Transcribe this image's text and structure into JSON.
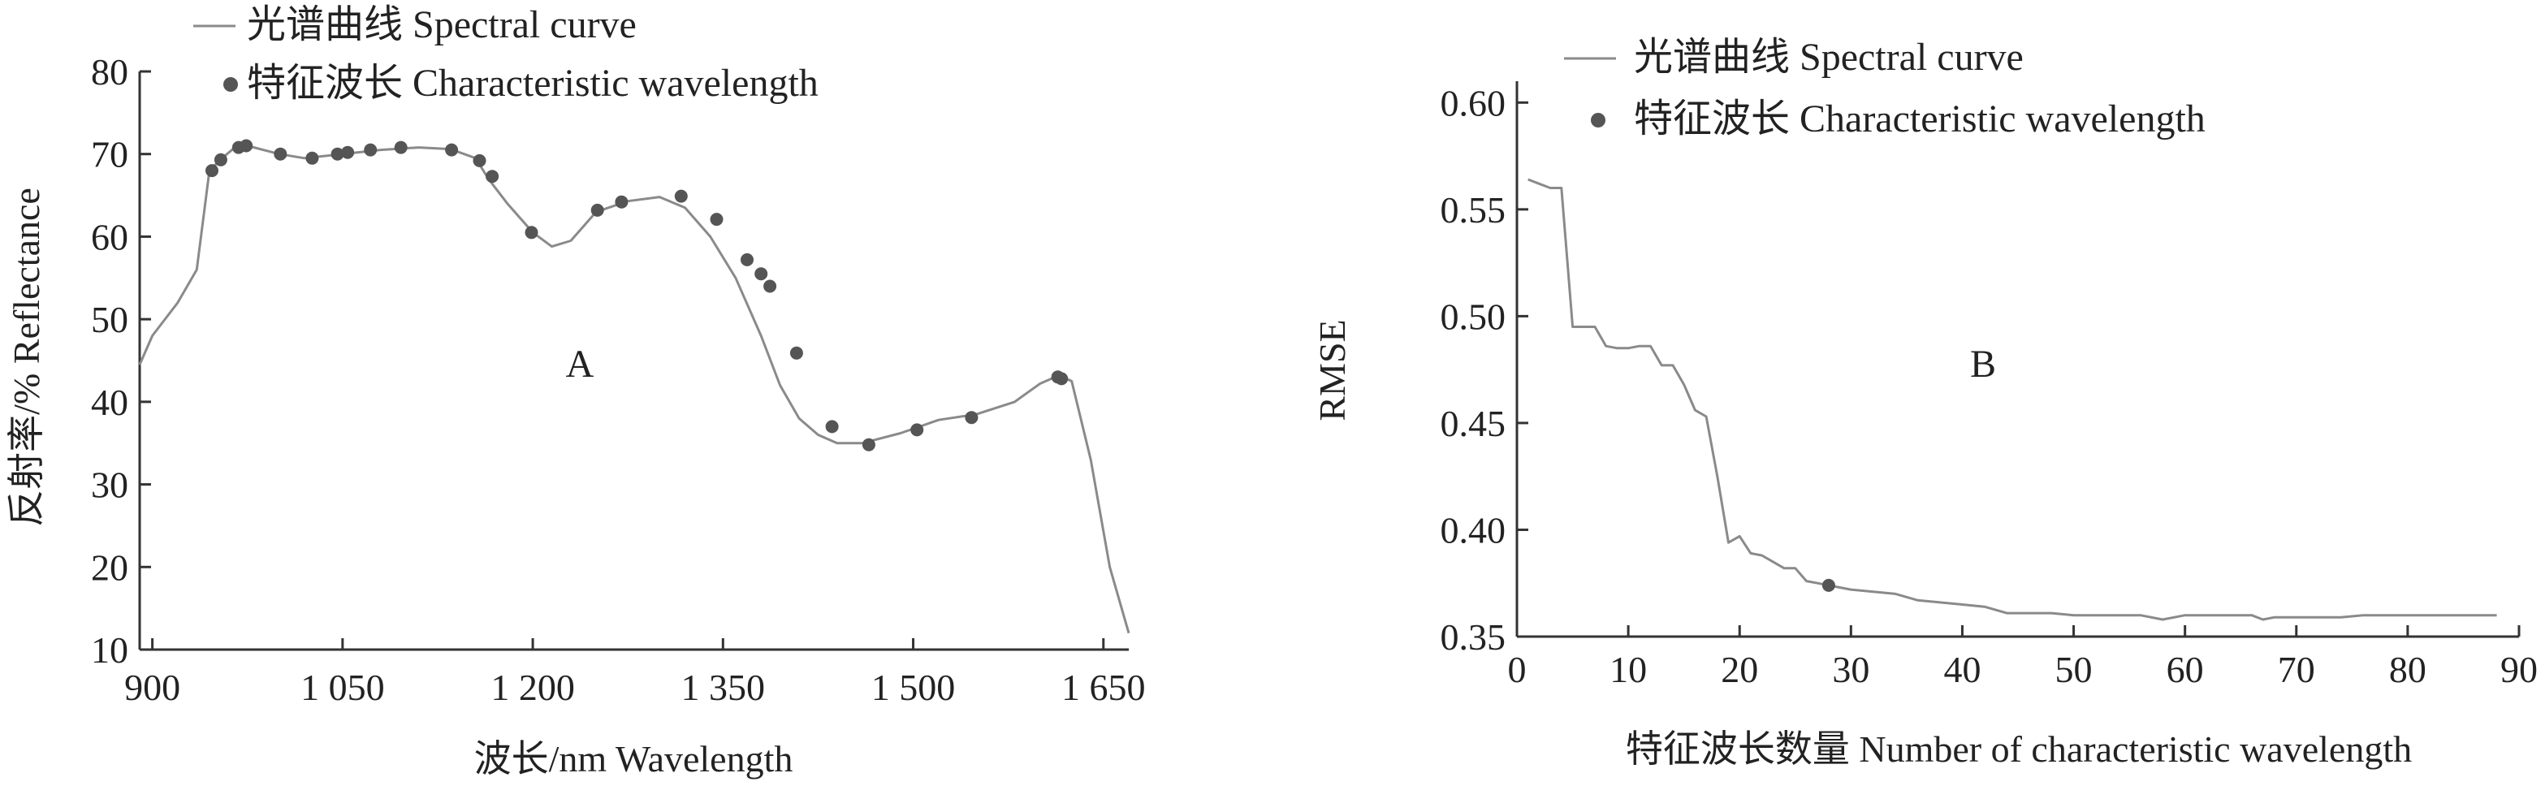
{
  "chart_data": [
    {
      "type": "line",
      "panel_label": "A",
      "xlabel": "波长/nm Wavelength",
      "ylabel": "反射率/% Reflectance",
      "xlim": [
        890,
        1670
      ],
      "ylim": [
        10,
        80
      ],
      "xticks": [
        900,
        1050,
        1200,
        1350,
        1500,
        1650
      ],
      "xtick_labels": [
        "900",
        "1 050",
        "1 200",
        "1 350",
        "1 500",
        "1 650"
      ],
      "yticks": [
        10,
        20,
        30,
        40,
        50,
        60,
        70,
        80
      ],
      "ytick_labels": [
        "10",
        "20",
        "30",
        "40",
        "50",
        "60",
        "70",
        "80"
      ],
      "legend": [
        {
          "label": "光谱曲线  Spectral curve",
          "marker": "line"
        },
        {
          "label": "特征波长  Characteristic wavelength",
          "marker": "dot"
        }
      ],
      "legend_position": "top",
      "series": [
        {
          "name": "光谱曲线  Spectral curve",
          "x": [
            890,
            900,
            920,
            935,
            945,
            955,
            965,
            975,
            1000,
            1020,
            1050,
            1080,
            1110,
            1135,
            1155,
            1165,
            1180,
            1200,
            1215,
            1230,
            1250,
            1275,
            1300,
            1320,
            1340,
            1360,
            1380,
            1395,
            1410,
            1425,
            1440,
            1460,
            1490,
            1520,
            1550,
            1580,
            1600,
            1615,
            1625,
            1640,
            1655,
            1670
          ],
          "y": [
            44.5,
            48,
            52,
            56,
            68,
            69.5,
            70.8,
            71,
            70,
            69.5,
            70,
            70.5,
            70.8,
            70.6,
            69.5,
            67,
            64,
            60.5,
            58.8,
            59.5,
            63,
            64.3,
            64.8,
            63.5,
            60,
            55,
            48,
            42,
            38,
            36,
            35,
            35,
            36.2,
            37.8,
            38.5,
            40,
            42.2,
            43.2,
            42.5,
            33,
            20,
            12
          ]
        },
        {
          "name": "特征波长  Characteristic wavelength",
          "x": [
            947,
            954,
            968,
            974,
            1001,
            1026,
            1046,
            1054,
            1072,
            1096,
            1136,
            1158,
            1168,
            1199,
            1251,
            1270,
            1317,
            1345,
            1369,
            1380,
            1387,
            1408,
            1436,
            1465,
            1503,
            1546,
            1614,
            1617
          ],
          "y": [
            68,
            69.3,
            70.8,
            71,
            70,
            69.5,
            70,
            70.2,
            70.5,
            70.8,
            70.5,
            69.2,
            67.3,
            60.5,
            63.2,
            64.2,
            64.9,
            62.1,
            57.2,
            55.5,
            54,
            45.9,
            37,
            34.8,
            36.6,
            38.1,
            43,
            42.8
          ]
        }
      ]
    },
    {
      "type": "line",
      "panel_label": "B",
      "xlabel": "特征波长数量 Number of characteristic wavelength",
      "ylabel": "RMSE",
      "xlim": [
        0,
        90
      ],
      "ylim": [
        0.35,
        0.61
      ],
      "xticks": [
        0,
        10,
        20,
        30,
        40,
        50,
        60,
        70,
        80,
        90
      ],
      "xtick_labels": [
        "0",
        "10",
        "20",
        "30",
        "40",
        "50",
        "60",
        "70",
        "80",
        "90"
      ],
      "yticks": [
        0.35,
        0.4,
        0.45,
        0.5,
        0.55,
        0.6
      ],
      "ytick_labels": [
        "0.35",
        "0.40",
        "0.45",
        "0.50",
        "0.55",
        "0.60"
      ],
      "legend": [
        {
          "label": "光谱曲线  Spectral curve",
          "marker": "line"
        },
        {
          "label": "特征波长  Characteristic wavelength",
          "marker": "dot"
        }
      ],
      "legend_position": "top-right",
      "series": [
        {
          "name": "光谱曲线  Spectral curve",
          "x": [
            1,
            2,
            3,
            4,
            5,
            6,
            7,
            8,
            9,
            10,
            11,
            12,
            13,
            14,
            15,
            16,
            17,
            18,
            19,
            20,
            21,
            22,
            23,
            24,
            25,
            26,
            27,
            28,
            30,
            32,
            34,
            36,
            38,
            40,
            42,
            44,
            46,
            48,
            50,
            52,
            54,
            56,
            58,
            60,
            62,
            64,
            66,
            67,
            68,
            70,
            72,
            74,
            76,
            78,
            80,
            82,
            84,
            86,
            88
          ],
          "y": [
            0.564,
            0.562,
            0.56,
            0.56,
            0.495,
            0.495,
            0.495,
            0.486,
            0.485,
            0.485,
            0.486,
            0.486,
            0.477,
            0.477,
            0.468,
            0.456,
            0.453,
            0.425,
            0.394,
            0.397,
            0.389,
            0.388,
            0.385,
            0.382,
            0.382,
            0.376,
            0.375,
            0.374,
            0.372,
            0.371,
            0.37,
            0.367,
            0.366,
            0.365,
            0.364,
            0.361,
            0.361,
            0.361,
            0.36,
            0.36,
            0.36,
            0.36,
            0.358,
            0.36,
            0.36,
            0.36,
            0.36,
            0.358,
            0.359,
            0.359,
            0.359,
            0.359,
            0.36,
            0.36,
            0.36,
            0.36,
            0.36,
            0.36,
            0.36
          ]
        },
        {
          "name": "特征波长  Characteristic wavelength",
          "x": [
            28
          ],
          "y": [
            0.374
          ]
        }
      ]
    }
  ]
}
